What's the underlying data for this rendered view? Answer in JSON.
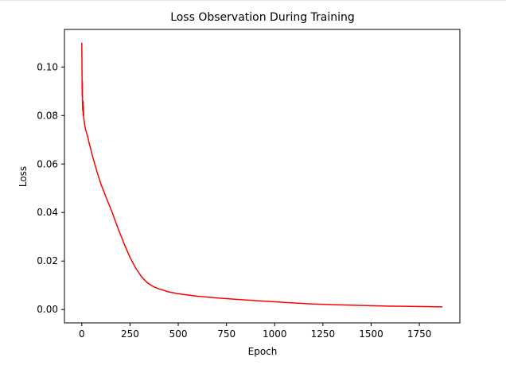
{
  "chart_data": {
    "type": "line",
    "title": "Loss Observation During Training",
    "xlabel": "Epoch",
    "ylabel": "Loss",
    "xlim": [
      -90,
      1960
    ],
    "ylim": [
      -0.0055,
      0.1155
    ],
    "xticks": [
      0,
      250,
      500,
      750,
      1000,
      1250,
      1500,
      1750
    ],
    "xtick_labels": [
      "0",
      "250",
      "500",
      "750",
      "1000",
      "1250",
      "1500",
      "1750"
    ],
    "yticks": [
      0.0,
      0.02,
      0.04,
      0.06,
      0.08,
      0.1
    ],
    "ytick_labels": [
      "0.00",
      "0.02",
      "0.04",
      "0.06",
      "0.08",
      "0.10"
    ],
    "grid": false,
    "legend": "none",
    "series": [
      {
        "color": "#ff0000",
        "x": [
          0,
          1,
          2,
          3,
          4,
          5,
          6,
          7,
          8,
          9,
          10,
          12,
          15,
          20,
          30,
          40,
          60,
          80,
          100,
          130,
          160,
          190,
          220,
          250,
          280,
          310,
          340,
          370,
          400,
          450,
          500,
          600,
          700,
          800,
          900,
          1000,
          1100,
          1200,
          1300,
          1400,
          1500,
          1600,
          1700,
          1800,
          1870
        ],
        "y": [
          0.11,
          0.1,
          0.088,
          0.094,
          0.084,
          0.082,
          0.086,
          0.08,
          0.084,
          0.082,
          0.079,
          0.078,
          0.076,
          0.074,
          0.0715,
          0.068,
          0.062,
          0.0565,
          0.0515,
          0.0455,
          0.0395,
          0.033,
          0.027,
          0.0215,
          0.017,
          0.0135,
          0.011,
          0.0095,
          0.0085,
          0.0073,
          0.0065,
          0.0055,
          0.0048,
          0.0042,
          0.0037,
          0.0032,
          0.0027,
          0.0023,
          0.002,
          0.0018,
          0.0016,
          0.0014,
          0.0013,
          0.0012,
          0.0011
        ]
      }
    ]
  }
}
